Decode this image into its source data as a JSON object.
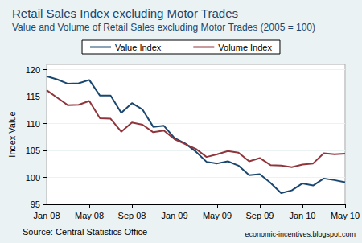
{
  "chart_data": {
    "type": "line",
    "title": "Retail Sales Index excluding Motor Trades",
    "subtitle": "Value and Volume of Retail Sales excluding Motor Trades (2005 = 100)",
    "y_label": "Index Value",
    "annotations": [
      "Source: Central Statistics Office",
      "economic-incentives.blogspot.com"
    ],
    "categories": [
      "Jan 08",
      null,
      null,
      null,
      "May 08",
      null,
      null,
      null,
      "Sep 08",
      null,
      null,
      null,
      "Jan 09",
      null,
      null,
      null,
      "May 09",
      null,
      null,
      null,
      "Sep 09",
      null,
      null,
      null,
      "Jan 10",
      null,
      null,
      null,
      "May 10"
    ],
    "series": [
      {
        "name": "Value Index",
        "color": "#1a476f",
        "values": [
          118.8,
          118.2,
          117.4,
          117.5,
          118.1,
          115.2,
          115.2,
          112.0,
          113.8,
          112.6,
          109.4,
          109.6,
          107.3,
          106.3,
          104.8,
          102.9,
          102.6,
          103.0,
          102.2,
          100.4,
          100.6,
          99.0,
          97.1,
          97.6,
          98.9,
          98.5,
          99.8,
          99.5,
          99.1
        ]
      },
      {
        "name": "Volume Index",
        "color": "#90353b",
        "values": [
          116.2,
          114.8,
          113.4,
          113.5,
          114.2,
          111.0,
          110.9,
          108.5,
          110.2,
          109.8,
          108.4,
          108.7,
          107.1,
          106.2,
          105.3,
          103.8,
          104.3,
          104.9,
          104.6,
          103.0,
          103.6,
          102.3,
          102.2,
          101.9,
          102.4,
          102.6,
          104.5,
          104.3,
          104.4
        ]
      }
    ],
    "ylim": [
      95,
      121
    ],
    "yticks": [
      95,
      100,
      105,
      110,
      115,
      120
    ],
    "grid": true,
    "legend": "top"
  }
}
